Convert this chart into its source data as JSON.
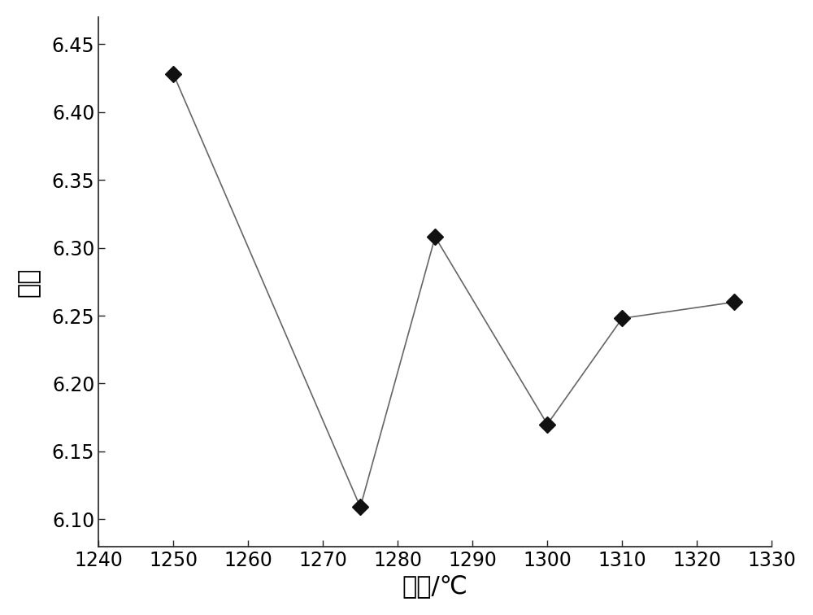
{
  "x": [
    1250,
    1275,
    1285,
    1300,
    1310,
    1325
  ],
  "y": [
    6.428,
    6.109,
    6.308,
    6.17,
    6.248,
    6.26
  ],
  "xlim": [
    1240,
    1330
  ],
  "ylim": [
    6.08,
    6.47
  ],
  "xticks": [
    1240,
    1250,
    1260,
    1270,
    1280,
    1290,
    1300,
    1310,
    1320,
    1330
  ],
  "yticks": [
    6.1,
    6.15,
    6.2,
    6.25,
    6.3,
    6.35,
    6.4,
    6.45
  ],
  "xlabel": "温度/℃",
  "ylabel": "寿命",
  "line_color": "#666666",
  "marker_color": "#111111",
  "marker": "D",
  "marker_size": 10,
  "line_width": 1.2,
  "bg_color": "#ffffff",
  "xlabel_fontsize": 22,
  "ylabel_fontsize": 22,
  "tick_fontsize": 17
}
